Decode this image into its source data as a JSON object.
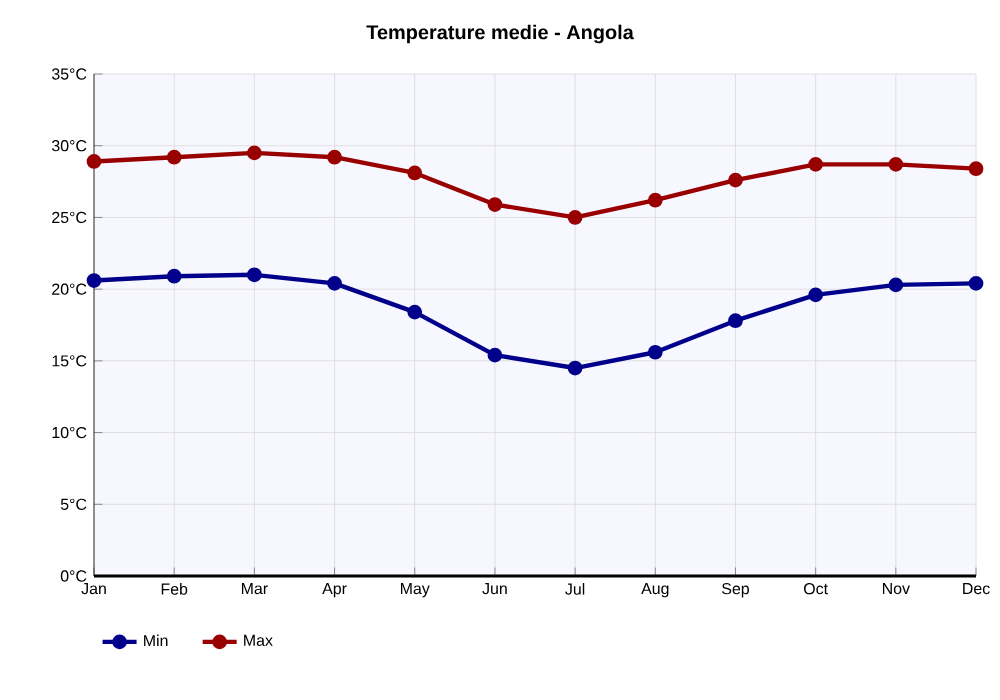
{
  "chart_data": {
    "type": "line",
    "title": "Temperature medie - Angola",
    "categories": [
      "Jan",
      "Feb",
      "Mar",
      "Apr",
      "May",
      "Jun",
      "Jul",
      "Aug",
      "Sep",
      "Oct",
      "Nov",
      "Dec"
    ],
    "series": [
      {
        "name": "Min",
        "color": "#00008b",
        "values": [
          20.6,
          20.9,
          21.0,
          20.4,
          18.4,
          15.4,
          14.5,
          15.6,
          17.8,
          19.6,
          20.3,
          20.4
        ]
      },
      {
        "name": "Max",
        "color": "#990000",
        "values": [
          28.9,
          29.2,
          29.5,
          29.2,
          28.1,
          25.9,
          25.0,
          26.2,
          27.6,
          28.7,
          28.7,
          28.4
        ]
      }
    ],
    "ylim": [
      0,
      35
    ],
    "yticks": [
      {
        "value": 0,
        "label": "0°C"
      },
      {
        "value": 5,
        "label": "5°C"
      },
      {
        "value": 10,
        "label": "10°C"
      },
      {
        "value": 15,
        "label": "15°C"
      },
      {
        "value": 20,
        "label": "20°C"
      },
      {
        "value": 25,
        "label": "25°C"
      },
      {
        "value": 30,
        "label": "30°C"
      },
      {
        "value": 35,
        "label": "35°C"
      }
    ],
    "grid": true,
    "legend": "bottom left",
    "marker": "circle",
    "line_style": "solid"
  }
}
